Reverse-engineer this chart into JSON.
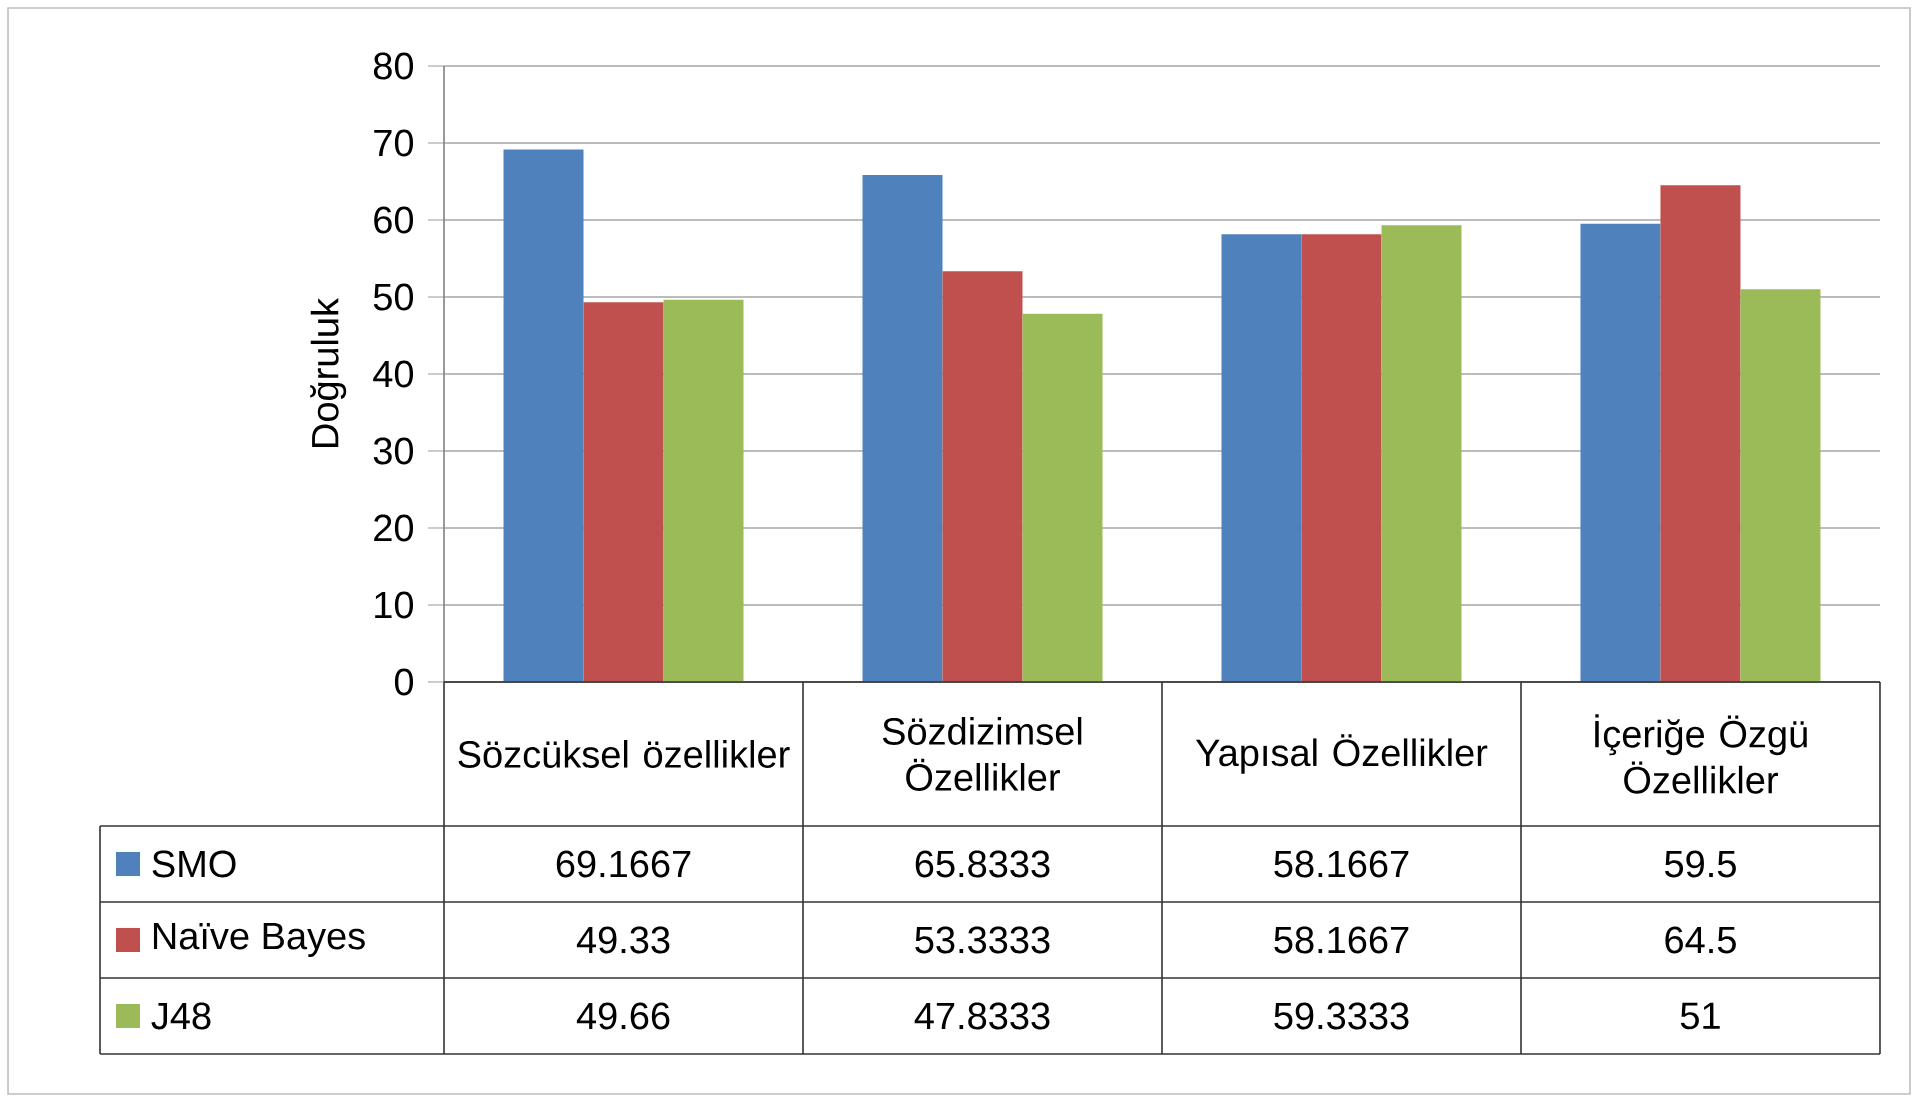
{
  "chart_data": {
    "type": "bar",
    "ylabel": "Doğruluk",
    "categories": [
      "Sözcüksel özellikler",
      "Sözdizimsel Özellikler",
      "Yapısal Özellikler",
      "İçeriğe Özgü Özellikler"
    ],
    "series": [
      {
        "name": "SMO",
        "color": "#4f81bd",
        "values": [
          69.1667,
          65.8333,
          58.1667,
          59.5
        ]
      },
      {
        "name": "Naïve Bayes",
        "color": "#c0504d",
        "values": [
          49.33,
          53.3333,
          58.1667,
          64.5
        ]
      },
      {
        "name": "J48",
        "color": "#9bbb59",
        "values": [
          49.66,
          47.8333,
          59.3333,
          51
        ]
      }
    ],
    "ylim": [
      0,
      80
    ],
    "yticks": [
      0,
      10,
      20,
      30,
      40,
      50,
      60,
      70,
      80
    ],
    "grid": "y",
    "legend": "bottom",
    "data_labels": true
  }
}
